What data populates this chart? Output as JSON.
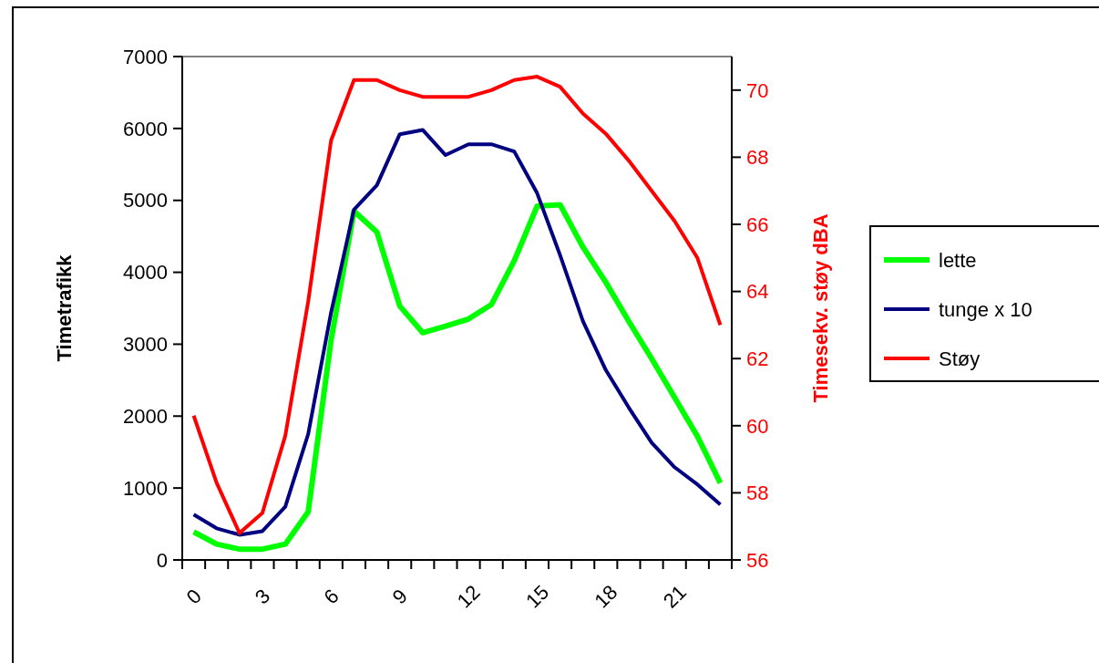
{
  "chart_data": {
    "type": "line",
    "ylabel": "Timetrafikk",
    "y2label": "Timesekv. støy dBA",
    "categories": [
      "0",
      null,
      null,
      "3",
      null,
      null,
      "6",
      null,
      null,
      "9",
      null,
      null,
      "12",
      null,
      null,
      "15",
      null,
      null,
      "18",
      null,
      null,
      "21",
      null,
      null
    ],
    "ylim": [
      0,
      7000
    ],
    "yticks": [
      0,
      1000,
      2000,
      3000,
      4000,
      5000,
      6000,
      7000
    ],
    "y2lim": [
      56,
      71
    ],
    "y2ticks": [
      56,
      58,
      60,
      62,
      64,
      66,
      68,
      70
    ],
    "legend": "right",
    "grid": false,
    "marker": "none",
    "line_style": "solid",
    "series": [
      {
        "name": "lette",
        "color": "#00ff00",
        "values": [
          390,
          220,
          150,
          150,
          220,
          670,
          3060,
          4850,
          4560,
          3530,
          3160,
          3250,
          3350,
          3550,
          4160,
          4920,
          4940,
          4350,
          3860,
          3320,
          2800,
          2260,
          1720,
          1070
        ]
      },
      {
        "name": "tunge x 10",
        "color": "#000080",
        "values": [
          630,
          440,
          350,
          400,
          740,
          1750,
          3440,
          4870,
          5210,
          5920,
          5980,
          5630,
          5780,
          5780,
          5680,
          5100,
          4240,
          3320,
          2640,
          2120,
          1630,
          1290,
          1050,
          770
        ]
      },
      {
        "name": "Støy",
        "color": "#ff0000",
        "axis": "y2",
        "values": [
          60.3,
          58.3,
          56.8,
          57.4,
          59.7,
          63.7,
          68.5,
          70.3,
          70.3,
          70.0,
          69.8,
          69.8,
          69.8,
          70.0,
          70.3,
          70.4,
          70.1,
          69.3,
          68.7,
          67.9,
          67.0,
          66.1,
          65.0,
          63.0
        ]
      }
    ]
  }
}
